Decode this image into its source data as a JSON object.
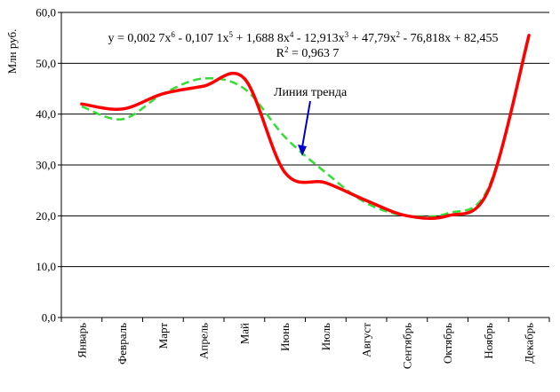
{
  "chart_data": {
    "type": "line",
    "ylabel": "Млн руб.",
    "ylim": [
      0,
      60
    ],
    "yticks": [
      "0,0",
      "10,0",
      "20,0",
      "30,0",
      "40,0",
      "50,0",
      "60,0"
    ],
    "grid": true,
    "categories": [
      "Январь",
      "Февраль",
      "Март",
      "Апрель",
      "Май",
      "Июнь",
      "Июль",
      "Август",
      "Сентябрь",
      "Октябрь",
      "Ноябрь",
      "Декабрь"
    ],
    "series": [
      {
        "color": "#ff0000",
        "style": "solid",
        "values": [
          42.0,
          41.0,
          44.0,
          45.5,
          47.0,
          28.5,
          26.5,
          23.0,
          20.0,
          20.0,
          25.0,
          55.5
        ]
      },
      {
        "name": "Линия тренда",
        "color": "#33dd33",
        "style": "dashed",
        "values": [
          41.5,
          39.0,
          44.0,
          47.0,
          45.0,
          35.5,
          28.5,
          22.5,
          20.0,
          20.5,
          25.5,
          55.0
        ]
      }
    ],
    "equation": {
      "parts": [
        {
          "t": "y = 0,002 7x",
          "sup": "6"
        },
        {
          "t": " - 0,107 1x",
          "sup": "5"
        },
        {
          "t": " + 1,688 8x",
          "sup": "4"
        },
        {
          "t": " - 12,913x",
          "sup": "3"
        },
        {
          "t": " + 47,79x",
          "sup": "2"
        },
        {
          "t": " - 76,818x + 82,455",
          "sup": ""
        }
      ],
      "r2_label": "R",
      "r2_sup": "2",
      "r2_value": " = 0,963 7"
    },
    "arrow_color": "#0000cc"
  }
}
